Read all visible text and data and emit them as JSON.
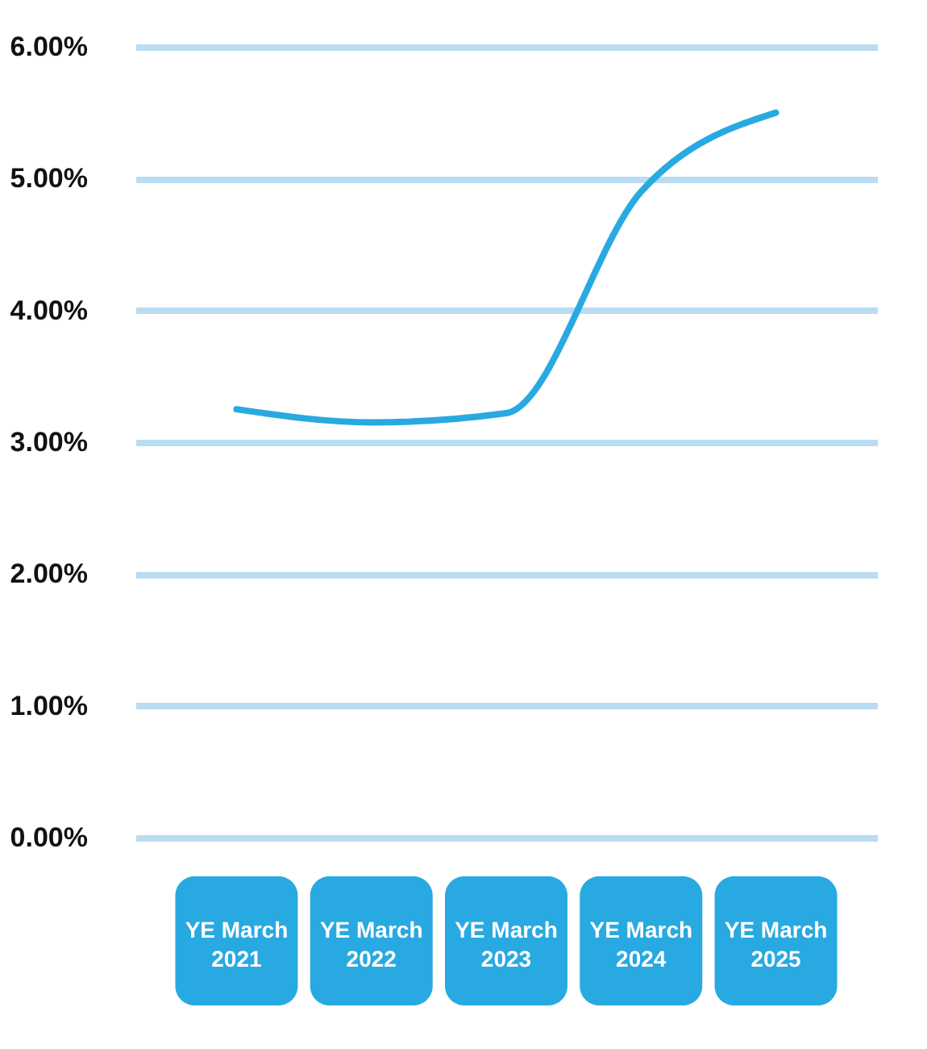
{
  "chart_data": {
    "type": "line",
    "categories": [
      "YE March\n2021",
      "YE March\n2022",
      "YE March\n2023",
      "YE March\n2024",
      "YE March\n2025"
    ],
    "values": [
      3.25,
      3.15,
      3.22,
      4.9,
      5.5
    ],
    "color": "#29a9e1",
    "ylim": [
      0,
      6
    ],
    "yticks": [
      {
        "value": 0,
        "label": "0.00%"
      },
      {
        "value": 1,
        "label": "1.00%"
      },
      {
        "value": 2,
        "label": "2.00%"
      },
      {
        "value": 3,
        "label": "3.00%"
      },
      {
        "value": 4,
        "label": "4.00%"
      },
      {
        "value": 5,
        "label": "5.00%"
      },
      {
        "value": 6,
        "label": "6.00%"
      }
    ],
    "grid": "y",
    "marker": "none",
    "line_style": "solid"
  }
}
